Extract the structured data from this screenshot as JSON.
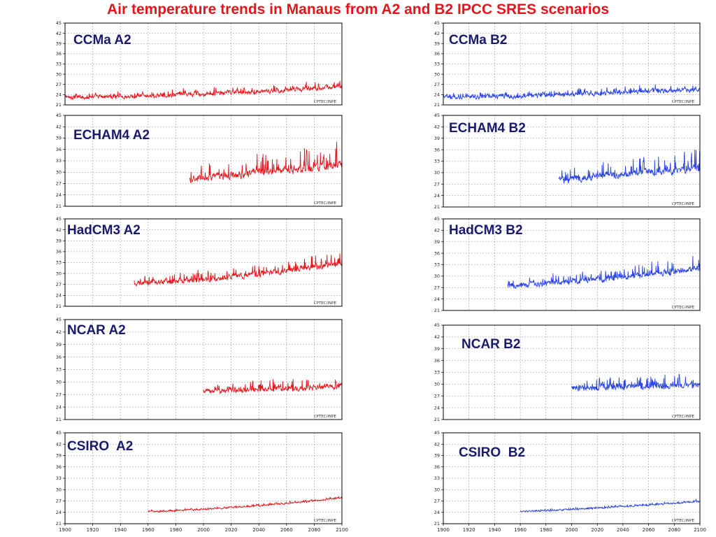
{
  "title": "Air temperature trends in Manaus from A2 and B2 IPCC SRES scenarios",
  "colors": {
    "A2": "#e8141b",
    "B2": "#2a44e6",
    "title": "#e8141b",
    "panel_title": "#1a1a6e"
  },
  "chart_data": [
    {
      "type": "line",
      "title": "CCMa A2",
      "scenario": "A2",
      "credit": "CPTEC/INPE",
      "x_start": 1900,
      "x_end": 2100,
      "xlim": [
        1900,
        2100
      ],
      "ylim": [
        21,
        45
      ],
      "yticks": [
        21,
        24,
        27,
        30,
        33,
        36,
        39,
        42,
        45
      ],
      "xticks": [],
      "grid": true,
      "trend": [
        [
          1900,
          23.3
        ],
        [
          1950,
          23.5
        ],
        [
          2000,
          24.2
        ],
        [
          2050,
          25.0
        ],
        [
          2100,
          26.4
        ]
      ],
      "amplitude": 1.0,
      "spikiness": 1.4
    },
    {
      "type": "line",
      "title": "CCMa B2",
      "scenario": "B2",
      "credit": "CPTEC/INPE",
      "x_start": 1900,
      "x_end": 2100,
      "xlim": [
        1900,
        2100
      ],
      "ylim": [
        21,
        45
      ],
      "yticks": [
        21,
        24,
        27,
        30,
        33,
        36,
        39,
        42,
        45
      ],
      "xticks": [],
      "grid": true,
      "trend": [
        [
          1900,
          23.3
        ],
        [
          1950,
          23.5
        ],
        [
          2000,
          24.1
        ],
        [
          2050,
          24.8
        ],
        [
          2100,
          25.4
        ]
      ],
      "amplitude": 1.0,
      "spikiness": 1.3
    },
    {
      "type": "line",
      "title": "ECHAM4 A2",
      "scenario": "A2",
      "credit": "CPTEC/INPE",
      "x_start": 1990,
      "x_end": 2100,
      "xlim": [
        1900,
        2100
      ],
      "ylim": [
        21,
        45
      ],
      "yticks": [
        21,
        24,
        27,
        30,
        33,
        36,
        39,
        42,
        45
      ],
      "xticks": [],
      "grid": true,
      "trend": [
        [
          1990,
          28.2
        ],
        [
          2020,
          29.2
        ],
        [
          2050,
          30.2
        ],
        [
          2100,
          32.0
        ]
      ],
      "amplitude": 1.6,
      "spikiness": 4.5
    },
    {
      "type": "line",
      "title": "ECHAM4 B2",
      "scenario": "B2",
      "credit": "CPTEC/INPE",
      "x_start": 1990,
      "x_end": 2100,
      "xlim": [
        1900,
        2100
      ],
      "ylim": [
        21,
        45
      ],
      "yticks": [
        21,
        24,
        27,
        30,
        33,
        36,
        39,
        42,
        45
      ],
      "xticks": [],
      "grid": true,
      "trend": [
        [
          1990,
          28.0
        ],
        [
          2020,
          29.0
        ],
        [
          2050,
          29.8
        ],
        [
          2100,
          31.0
        ]
      ],
      "amplitude": 1.5,
      "spikiness": 4.0
    },
    {
      "type": "line",
      "title": "HadCM3 A2",
      "scenario": "A2",
      "credit": "CPTEC/INPE",
      "x_start": 1950,
      "x_end": 2100,
      "xlim": [
        1900,
        2100
      ],
      "ylim": [
        21,
        45
      ],
      "yticks": [
        21,
        24,
        27,
        30,
        33,
        36,
        39,
        42,
        45
      ],
      "xticks": [],
      "grid": true,
      "trend": [
        [
          1950,
          27.4
        ],
        [
          2000,
          28.3
        ],
        [
          2050,
          30.3
        ],
        [
          2100,
          32.8
        ]
      ],
      "amplitude": 1.2,
      "spikiness": 2.6
    },
    {
      "type": "line",
      "title": "HadCM3 B2",
      "scenario": "B2",
      "credit": "CPTEC/INPE",
      "x_start": 1950,
      "x_end": 2100,
      "xlim": [
        1900,
        2100
      ],
      "ylim": [
        21,
        45
      ],
      "yticks": [
        21,
        24,
        27,
        30,
        33,
        36,
        39,
        42,
        45
      ],
      "xticks": [],
      "grid": true,
      "trend": [
        [
          1950,
          27.4
        ],
        [
          2000,
          28.6
        ],
        [
          2050,
          30.1
        ],
        [
          2100,
          32.0
        ]
      ],
      "amplitude": 1.2,
      "spikiness": 2.4
    },
    {
      "type": "line",
      "title": "NCAR A2",
      "scenario": "A2",
      "credit": "CPTEC/INPE",
      "x_start": 2000,
      "x_end": 2100,
      "xlim": [
        1900,
        2100
      ],
      "ylim": [
        21,
        45
      ],
      "yticks": [
        21,
        24,
        27,
        30,
        33,
        36,
        39,
        42,
        45
      ],
      "xticks": [],
      "grid": true,
      "trend": [
        [
          2000,
          27.8
        ],
        [
          2050,
          28.3
        ],
        [
          2100,
          29.0
        ]
      ],
      "amplitude": 1.1,
      "spikiness": 2.2
    },
    {
      "type": "line",
      "title": "NCAR B2",
      "scenario": "B2",
      "credit": "CPTEC/INPE",
      "x_start": 2000,
      "x_end": 2100,
      "xlim": [
        1900,
        2100
      ],
      "ylim": [
        21,
        45
      ],
      "yticks": [
        21,
        24,
        27,
        30,
        33,
        36,
        39,
        42,
        45
      ],
      "xticks": [],
      "grid": true,
      "trend": [
        [
          2000,
          29.0
        ],
        [
          2050,
          29.3
        ],
        [
          2100,
          29.8
        ]
      ],
      "amplitude": 1.2,
      "spikiness": 2.4
    },
    {
      "type": "line",
      "title": "CSIRO  A2",
      "scenario": "A2",
      "credit": "CPTEC/INPE",
      "x_start": 1960,
      "x_end": 2100,
      "xlim": [
        1900,
        2100
      ],
      "ylim": [
        21,
        45
      ],
      "yticks": [
        21,
        24,
        27,
        30,
        33,
        36,
        39,
        42,
        45
      ],
      "xticks": [
        1900,
        1920,
        1940,
        1960,
        1980,
        2000,
        2020,
        2040,
        2060,
        2080,
        2100
      ],
      "grid": true,
      "trend": [
        [
          1960,
          24.2
        ],
        [
          2000,
          24.8
        ],
        [
          2050,
          26.0
        ],
        [
          2100,
          27.8
        ]
      ],
      "amplitude": 0.35,
      "spikiness": 0.4
    },
    {
      "type": "line",
      "title": "CSIRO  B2",
      "scenario": "B2",
      "credit": "CPTEC/INPE",
      "x_start": 1960,
      "x_end": 2100,
      "xlim": [
        1900,
        2100
      ],
      "ylim": [
        21,
        45
      ],
      "yticks": [
        21,
        24,
        27,
        30,
        33,
        36,
        39,
        42,
        45
      ],
      "xticks": [
        1900,
        1920,
        1940,
        1960,
        1980,
        2000,
        2020,
        2040,
        2060,
        2080,
        2100
      ],
      "grid": true,
      "trend": [
        [
          1960,
          24.2
        ],
        [
          2000,
          24.8
        ],
        [
          2050,
          25.7
        ],
        [
          2100,
          26.9
        ]
      ],
      "amplitude": 0.35,
      "spikiness": 0.4
    }
  ]
}
